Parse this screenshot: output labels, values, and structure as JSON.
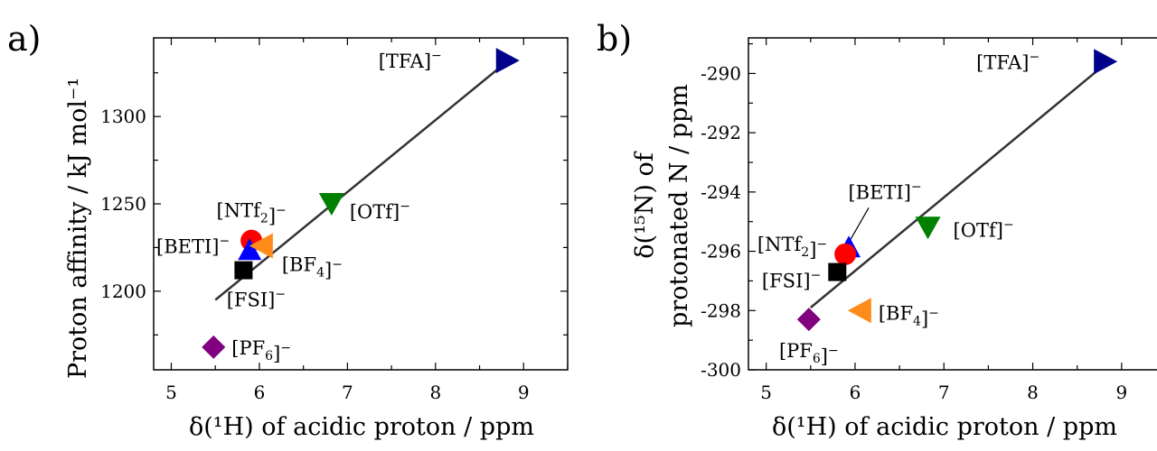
{
  "colors": {
    "TFA": "#00008b",
    "OTf": "#008000",
    "NTf2": "#ff0000",
    "BETI": "#0000ff",
    "BF4": "#ff8c1a",
    "FSI": "#000000",
    "PF6": "#800080",
    "fit_line": "#333333"
  },
  "chart_data": [
    {
      "type": "scatter",
      "panel_label": "a)",
      "xlabel": "δ(¹H) of acidic proton / ppm",
      "ylabel": "Proton affinity / kJ mol⁻¹",
      "xlim": [
        4.8,
        9.5
      ],
      "ylim": [
        1155,
        1345
      ],
      "xticks": [
        5,
        6,
        7,
        8,
        9
      ],
      "yticks": [
        1200,
        1250,
        1300
      ],
      "grid": false,
      "legend": "none",
      "points": [
        {
          "key": "TFA",
          "label": "[TFA]⁻",
          "x": 8.81,
          "y": 1332,
          "marker": "triangle-right"
        },
        {
          "key": "OTf",
          "label": "[OTf]⁻",
          "x": 6.82,
          "y": 1250,
          "marker": "triangle-down"
        },
        {
          "key": "NTf2",
          "label": "[NTf₂]⁻",
          "x": 5.91,
          "y": 1229,
          "marker": "circle"
        },
        {
          "key": "BETI",
          "label": "[BETI]⁻",
          "x": 5.89,
          "y": 1223,
          "marker": "triangle-up"
        },
        {
          "key": "BF4",
          "label": "[BF₄]⁻",
          "x": 6.03,
          "y": 1226,
          "marker": "triangle-left"
        },
        {
          "key": "FSI",
          "label": "[FSI]⁻",
          "x": 5.82,
          "y": 1212,
          "marker": "square"
        },
        {
          "key": "PF6",
          "label": "[PF₆]⁻",
          "x": 5.48,
          "y": 1168,
          "marker": "diamond"
        }
      ],
      "fit_line": {
        "x": [
          5.5,
          8.85
        ],
        "y": [
          1195,
          1333
        ]
      }
    },
    {
      "type": "scatter",
      "panel_label": "b)",
      "xlabel": "δ(¹H) of acidic proton / ppm",
      "ylabel_line1": "δ(¹⁵N) of",
      "ylabel_line2": "protonated N / ppm",
      "xlim": [
        4.8,
        9.5
      ],
      "ylim": [
        -300,
        -288.8
      ],
      "xticks": [
        5,
        6,
        7,
        8,
        9
      ],
      "yticks": [
        -300,
        -298,
        -296,
        -294,
        -292,
        -290
      ],
      "grid": false,
      "legend": "none",
      "points": [
        {
          "key": "TFA",
          "label": "[TFA]⁻",
          "x": 8.81,
          "y": -289.6,
          "marker": "triangle-right"
        },
        {
          "key": "OTf",
          "label": "[OTf]⁻",
          "x": 6.82,
          "y": -295.2,
          "marker": "triangle-down"
        },
        {
          "key": "BETI",
          "label": "[BETI]⁻",
          "x": 5.93,
          "y": -295.9,
          "marker": "triangle-up"
        },
        {
          "key": "NTf2",
          "label": "[NTf₂]⁻",
          "x": 5.89,
          "y": -296.1,
          "marker": "circle"
        },
        {
          "key": "FSI",
          "label": "[FSI]⁻",
          "x": 5.8,
          "y": -296.7,
          "marker": "square"
        },
        {
          "key": "BF4",
          "label": "[BF₄]⁻",
          "x": 6.06,
          "y": -298.0,
          "marker": "triangle-left"
        },
        {
          "key": "PF6",
          "label": "[PF₆]⁻",
          "x": 5.48,
          "y": -298.3,
          "marker": "diamond"
        }
      ],
      "fit_line": {
        "x": [
          5.5,
          8.85
        ],
        "y": [
          -297.9,
          -289.6
        ]
      }
    }
  ]
}
